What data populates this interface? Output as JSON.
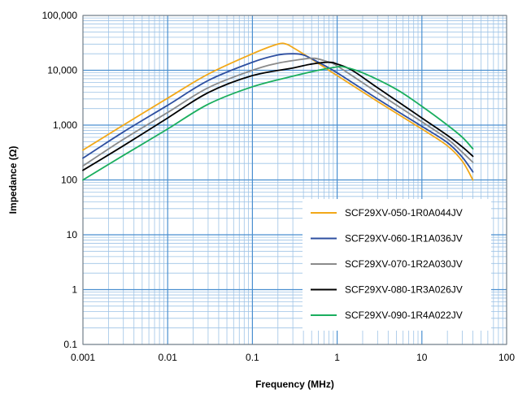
{
  "chart_data": {
    "type": "line",
    "title": "",
    "xlabel": "Frequency (MHz)",
    "ylabel": "Impedance (Ω)",
    "x_scale": "log",
    "y_scale": "log",
    "xlim": [
      0.001,
      100
    ],
    "ylim": [
      0.1,
      100000
    ],
    "x_ticks": [
      "0.001",
      "0.01",
      "0.1",
      "1",
      "10",
      "100"
    ],
    "y_ticks": [
      "0.1",
      "1",
      "10",
      "100",
      "1,000",
      "10,000",
      "100,000"
    ],
    "grid": true,
    "legend_position": "bottom-right",
    "series": [
      {
        "name": "SCF29XV-050-1R0A044JV",
        "color": "#F2A818",
        "points": [
          [
            0.001,
            350
          ],
          [
            0.003,
            1000
          ],
          [
            0.01,
            3100
          ],
          [
            0.03,
            8500
          ],
          [
            0.1,
            20000
          ],
          [
            0.2,
            30000
          ],
          [
            0.25,
            30000
          ],
          [
            0.3,
            26000
          ],
          [
            0.5,
            16000
          ],
          [
            1,
            8000
          ],
          [
            3,
            2700
          ],
          [
            10,
            850
          ],
          [
            20,
            420
          ],
          [
            30,
            220
          ],
          [
            40,
            100
          ]
        ]
      },
      {
        "name": "SCF29XV-060-1R1A036JV",
        "color": "#2E4FA0",
        "points": [
          [
            0.001,
            250
          ],
          [
            0.003,
            750
          ],
          [
            0.01,
            2300
          ],
          [
            0.03,
            6500
          ],
          [
            0.1,
            14000
          ],
          [
            0.2,
            19000
          ],
          [
            0.3,
            20000
          ],
          [
            0.4,
            19000
          ],
          [
            0.6,
            14000
          ],
          [
            1,
            9000
          ],
          [
            3,
            3000
          ],
          [
            10,
            950
          ],
          [
            20,
            480
          ],
          [
            30,
            260
          ],
          [
            40,
            140
          ]
        ]
      },
      {
        "name": "SCF29XV-070-1R2A030JV",
        "color": "#8A8A8A",
        "points": [
          [
            0.001,
            180
          ],
          [
            0.003,
            550
          ],
          [
            0.01,
            1700
          ],
          [
            0.03,
            4800
          ],
          [
            0.1,
            10000
          ],
          [
            0.2,
            13500
          ],
          [
            0.4,
            16000
          ],
          [
            0.55,
            16500
          ],
          [
            0.8,
            14000
          ],
          [
            1,
            12000
          ],
          [
            3,
            3900
          ],
          [
            10,
            1150
          ],
          [
            20,
            560
          ],
          [
            30,
            320
          ],
          [
            40,
            210
          ]
        ]
      },
      {
        "name": "SCF29XV-080-1R3A026JV",
        "color": "#000000",
        "points": [
          [
            0.001,
            150
          ],
          [
            0.003,
            420
          ],
          [
            0.01,
            1350
          ],
          [
            0.03,
            3900
          ],
          [
            0.1,
            8000
          ],
          [
            0.3,
            11000
          ],
          [
            0.5,
            13000
          ],
          [
            0.8,
            14000
          ],
          [
            1,
            13000
          ],
          [
            1.5,
            10000
          ],
          [
            3,
            4800
          ],
          [
            10,
            1350
          ],
          [
            20,
            650
          ],
          [
            30,
            400
          ],
          [
            40,
            270
          ]
        ]
      },
      {
        "name": "SCF29XV-090-1R4A022JV",
        "color": "#1AAE5E",
        "points": [
          [
            0.001,
            100
          ],
          [
            0.003,
            280
          ],
          [
            0.01,
            850
          ],
          [
            0.03,
            2400
          ],
          [
            0.1,
            5000
          ],
          [
            0.3,
            7800
          ],
          [
            0.6,
            10000
          ],
          [
            1,
            11500
          ],
          [
            1.2,
            11500
          ],
          [
            2,
            9000
          ],
          [
            5,
            4500
          ],
          [
            10,
            2200
          ],
          [
            20,
            1000
          ],
          [
            30,
            600
          ],
          [
            40,
            370
          ]
        ]
      }
    ]
  }
}
